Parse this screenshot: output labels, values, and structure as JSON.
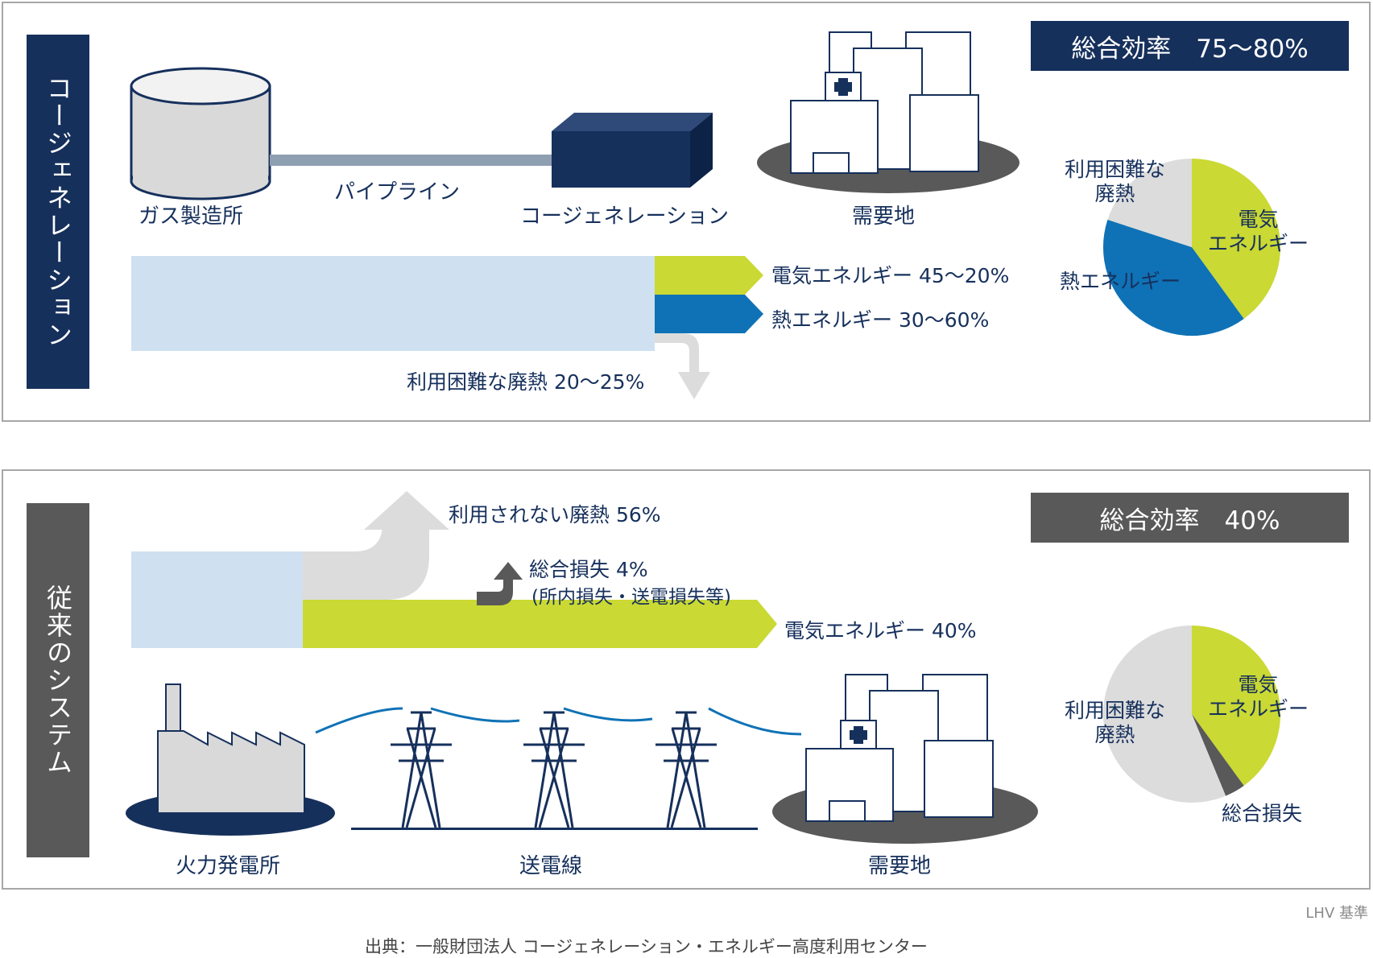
{
  "cogeneration": {
    "side_label": "コージェネレーション",
    "efficiency": "総合効率　75〜80%",
    "facilities": {
      "gas_plant": "ガス製造所",
      "pipeline": "パイプライン",
      "cogen_unit": "コージェネレーション",
      "demand_site": "需要地"
    },
    "flows": {
      "electric": "電気エネルギー 45〜20%",
      "heat": "熱エネルギー 30〜60%",
      "waste": "利用困難な廃熱 20〜25%"
    },
    "pie_labels": {
      "waste": "利用困難な\n廃熱",
      "electric": "電気\nエネルギー",
      "heat": "熱エネルギー"
    }
  },
  "conventional": {
    "side_label": "従来のシステム",
    "efficiency": "総合効率　40%",
    "facilities": {
      "power_plant": "火力発電所",
      "transmission": "送電線",
      "demand_site": "需要地"
    },
    "flows": {
      "waste": "利用されない廃熱 56%",
      "loss": "総合損失 4%",
      "loss_detail": "(所内損失・送電損失等)",
      "electric": "電気エネルギー 40%"
    },
    "pie_labels": {
      "waste": "利用困難な\n廃熱",
      "electric": "電気\nエネルギー",
      "loss": "総合損失"
    }
  },
  "basis_note": "LHV 基準",
  "source": "出典：一般財団法人 コージェネレーション・エネルギー高度利用センター",
  "colors": {
    "navy": "#16305c",
    "lime": "#cad933",
    "blue": "#0f72b6",
    "light_blue": "#cfe0f1",
    "light_gray": "#dcdcdc",
    "dark_gray": "#595959"
  }
}
